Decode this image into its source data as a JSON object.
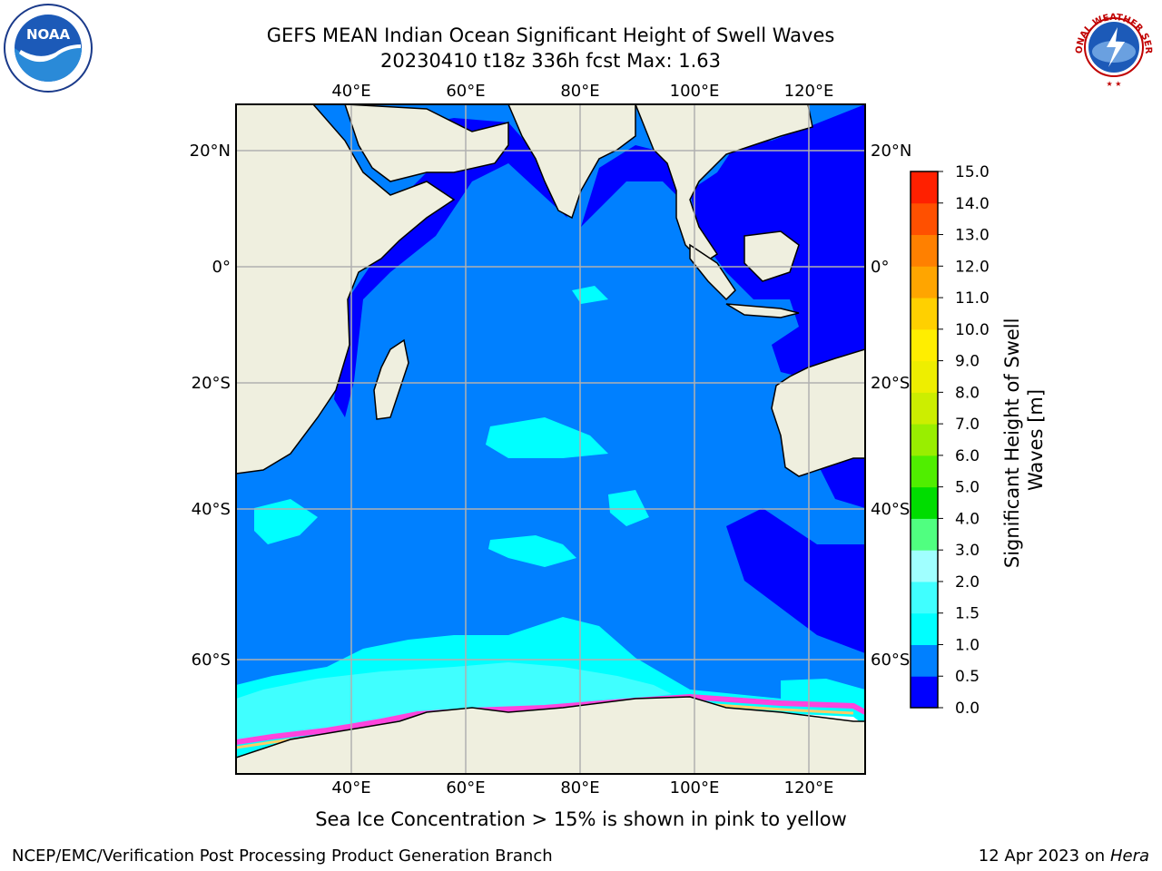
{
  "header": {
    "title_line1": "GEFS MEAN Indian Ocean Significant Height of Swell Waves",
    "title_line2": "20230410 t18z 336h fcst   Max: 1.63"
  },
  "map": {
    "lon_ticks": [
      "40°E",
      "60°E",
      "80°E",
      "100°E",
      "120°E"
    ],
    "lat_ticks": [
      "20°N",
      "0°",
      "20°S",
      "40°S",
      "60°S"
    ],
    "lon_range": [
      20,
      130
    ],
    "lat_range": [
      -70,
      28
    ],
    "gridlines": true,
    "colors": {
      "land": "#efefdf",
      "ocean_0_05": "#0000ff",
      "ocean_05_10": "#0080ff",
      "ocean_10_15": "#00ffff",
      "ocean_15_20": "#40ffff",
      "sea_ice": "#ff44dd",
      "grid": "#b0b0b0"
    }
  },
  "colorbar": {
    "label": "Significant Height of Swell Waves [m]",
    "tick_labels": [
      "0.0",
      "0.5",
      "1.0",
      "1.5",
      "2.0",
      "3.0",
      "4.0",
      "5.0",
      "6.0",
      "7.0",
      "8.0",
      "9.0",
      "10.0",
      "11.0",
      "12.0",
      "13.0",
      "14.0",
      "15.0"
    ],
    "bin_colors": [
      "#0000ff",
      "#0080ff",
      "#00ffff",
      "#40ffff",
      "#a0ffff",
      "#50ff80",
      "#00dd00",
      "#50ee00",
      "#99ee00",
      "#ccee00",
      "#eeee00",
      "#ffee00",
      "#ffd000",
      "#ffa500",
      "#ff8000",
      "#ff5000",
      "#ff2000"
    ]
  },
  "footer": {
    "caption": "Sea Ice Concentration > 15% is shown in pink to yellow",
    "credit": "NCEP/EMC/Verification Post Processing Product Generation Branch",
    "date_text": "12 Apr 2023 on ",
    "machine": "Hera"
  },
  "logos": {
    "noaa_text": "NOAA",
    "nws_text": "NATIONAL WEATHER SERVICE"
  }
}
